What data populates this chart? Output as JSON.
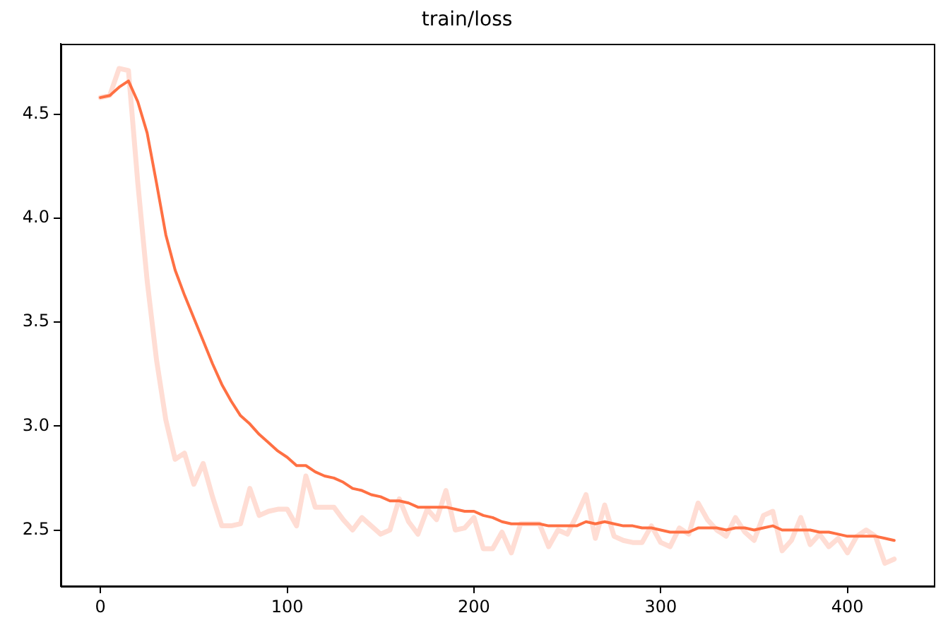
{
  "chart_data": {
    "type": "line",
    "title": "train/loss",
    "x": [
      0,
      5,
      10,
      15,
      20,
      25,
      30,
      35,
      40,
      45,
      50,
      55,
      60,
      65,
      70,
      75,
      80,
      85,
      90,
      95,
      100,
      105,
      110,
      115,
      120,
      125,
      130,
      135,
      140,
      145,
      150,
      155,
      160,
      165,
      170,
      175,
      180,
      185,
      190,
      195,
      200,
      205,
      210,
      215,
      220,
      225,
      230,
      235,
      240,
      245,
      250,
      255,
      260,
      265,
      270,
      275,
      280,
      285,
      290,
      295,
      300,
      305,
      310,
      315,
      320,
      325,
      330,
      335,
      340,
      345,
      350,
      355,
      360,
      365,
      370,
      375,
      380,
      385,
      390,
      395,
      400,
      405,
      410,
      415,
      420,
      425
    ],
    "series": [
      {
        "color": "#ffddd4",
        "values": [
          4.58,
          4.59,
          4.72,
          4.71,
          4.17,
          3.7,
          3.32,
          3.03,
          2.84,
          2.87,
          2.72,
          2.82,
          2.66,
          2.52,
          2.52,
          2.53,
          2.7,
          2.57,
          2.59,
          2.6,
          2.6,
          2.52,
          2.76,
          2.61,
          2.61,
          2.61,
          2.55,
          2.5,
          2.56,
          2.52,
          2.48,
          2.5,
          2.65,
          2.54,
          2.48,
          2.6,
          2.55,
          2.69,
          2.5,
          2.51,
          2.56,
          2.41,
          2.41,
          2.49,
          2.39,
          2.53,
          2.53,
          2.53,
          2.42,
          2.5,
          2.48,
          2.57,
          2.67,
          2.46,
          2.62,
          2.47,
          2.45,
          2.44,
          2.44,
          2.52,
          2.44,
          2.42,
          2.51,
          2.48,
          2.63,
          2.55,
          2.5,
          2.47,
          2.56,
          2.49,
          2.45,
          2.57,
          2.59,
          2.4,
          2.45,
          2.56,
          2.43,
          2.48,
          2.42,
          2.46,
          2.39,
          2.47,
          2.5,
          2.47,
          2.34,
          2.36
        ]
      },
      {
        "color": "#ff7043",
        "values": [
          4.58,
          4.59,
          4.63,
          4.66,
          4.56,
          4.41,
          4.17,
          3.92,
          3.75,
          3.63,
          3.52,
          3.41,
          3.3,
          3.2,
          3.12,
          3.05,
          3.01,
          2.96,
          2.92,
          2.88,
          2.85,
          2.81,
          2.81,
          2.78,
          2.76,
          2.75,
          2.73,
          2.7,
          2.69,
          2.67,
          2.66,
          2.64,
          2.64,
          2.63,
          2.61,
          2.61,
          2.61,
          2.61,
          2.6,
          2.59,
          2.59,
          2.57,
          2.56,
          2.54,
          2.53,
          2.53,
          2.53,
          2.53,
          2.52,
          2.52,
          2.52,
          2.52,
          2.54,
          2.53,
          2.54,
          2.53,
          2.52,
          2.52,
          2.51,
          2.51,
          2.5,
          2.49,
          2.49,
          2.49,
          2.51,
          2.51,
          2.51,
          2.5,
          2.51,
          2.51,
          2.5,
          2.51,
          2.52,
          2.5,
          2.5,
          2.5,
          2.5,
          2.49,
          2.49,
          2.48,
          2.47,
          2.47,
          2.47,
          2.47,
          2.46,
          2.45
        ]
      }
    ],
    "xlim": [
      -21.25,
      446.25
    ],
    "xticks": [
      0,
      100,
      200,
      300,
      400
    ],
    "ylim": [
      2.23,
      4.84
    ],
    "yticks": [
      {
        "value": 2.5,
        "label": "2.5"
      },
      {
        "value": 3,
        "label": "3.0"
      },
      {
        "value": 3.5,
        "label": "3.5"
      },
      {
        "value": 4,
        "label": "4.0"
      },
      {
        "value": 4.5,
        "label": "4.5"
      }
    ],
    "grid": false,
    "legend": false
  }
}
